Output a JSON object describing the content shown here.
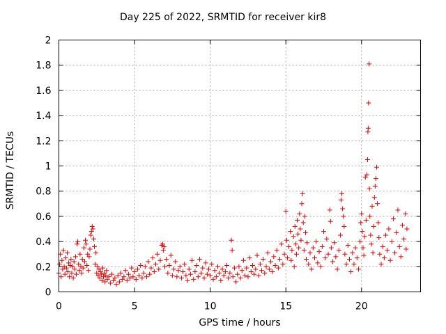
{
  "chart_data": {
    "type": "scatter",
    "title": "Day 225 of 2022, SRMTID for receiver kir8",
    "xlabel": "GPS time / hours",
    "ylabel": "SRMTID / TECUs",
    "xlim": [
      0,
      23.9
    ],
    "ylim": [
      0,
      2
    ],
    "xticks": [
      "0",
      "5",
      "10",
      "15",
      "20"
    ],
    "xtick_values": [
      0,
      5,
      10,
      15,
      20
    ],
    "yticks": [
      "0",
      "0.2",
      "0.4",
      "0.6",
      "0.8",
      "1",
      "1.2",
      "1.4",
      "1.6",
      "1.8",
      "2"
    ],
    "ytick_values": [
      0,
      0.2,
      0.4,
      0.6,
      0.8,
      1.0,
      1.2,
      1.4,
      1.6,
      1.8,
      2.0
    ],
    "grid": true,
    "marker": "+",
    "color": "#dd0000",
    "series": [
      {
        "name": "SRMTID",
        "points": [
          [
            0.0,
            0.15
          ],
          [
            0.05,
            0.22
          ],
          [
            0.1,
            0.3
          ],
          [
            0.15,
            0.12
          ],
          [
            0.2,
            0.25
          ],
          [
            0.25,
            0.18
          ],
          [
            0.3,
            0.33
          ],
          [
            0.35,
            0.2
          ],
          [
            0.4,
            0.14
          ],
          [
            0.45,
            0.27
          ],
          [
            0.5,
            0.19
          ],
          [
            0.55,
            0.31
          ],
          [
            0.6,
            0.16
          ],
          [
            0.65,
            0.23
          ],
          [
            0.7,
            0.12
          ],
          [
            0.75,
            0.21
          ],
          [
            0.8,
            0.26
          ],
          [
            0.85,
            0.15
          ],
          [
            0.9,
            0.2
          ],
          [
            0.95,
            0.11
          ],
          [
            1.0,
            0.24
          ],
          [
            1.05,
            0.18
          ],
          [
            1.1,
            0.28
          ],
          [
            1.15,
            0.14
          ],
          [
            1.2,
            0.38
          ],
          [
            1.25,
            0.4
          ],
          [
            1.3,
            0.22
          ],
          [
            1.35,
            0.17
          ],
          [
            1.4,
            0.3
          ],
          [
            1.45,
            0.2
          ],
          [
            1.5,
            0.15
          ],
          [
            1.55,
            0.26
          ],
          [
            1.6,
            0.19
          ],
          [
            1.65,
            0.35
          ],
          [
            1.7,
            0.24
          ],
          [
            1.75,
            0.41
          ],
          [
            1.8,
            0.38
          ],
          [
            1.85,
            0.21
          ],
          [
            1.9,
            0.3
          ],
          [
            1.95,
            0.17
          ],
          [
            2.0,
            0.28
          ],
          [
            2.05,
            0.34
          ],
          [
            2.1,
            0.45
          ],
          [
            2.15,
            0.48
          ],
          [
            2.2,
            0.52
          ],
          [
            2.25,
            0.5
          ],
          [
            2.3,
            0.42
          ],
          [
            2.35,
            0.36
          ],
          [
            2.4,
            0.22
          ],
          [
            2.45,
            0.31
          ],
          [
            2.5,
            0.15
          ],
          [
            2.55,
            0.2
          ],
          [
            2.6,
            0.13
          ],
          [
            2.65,
            0.18
          ],
          [
            2.7,
            0.11
          ],
          [
            2.75,
            0.16
          ],
          [
            2.8,
            0.14
          ],
          [
            2.85,
            0.09
          ],
          [
            2.9,
            0.19
          ],
          [
            2.95,
            0.12
          ],
          [
            3.0,
            0.15
          ],
          [
            3.05,
            0.08
          ],
          [
            3.1,
            0.13
          ],
          [
            3.15,
            0.17
          ],
          [
            3.2,
            0.1
          ],
          [
            3.3,
            0.12
          ],
          [
            3.4,
            0.07
          ],
          [
            3.5,
            0.14
          ],
          [
            3.6,
            0.09
          ],
          [
            3.7,
            0.11
          ],
          [
            3.8,
            0.06
          ],
          [
            3.9,
            0.13
          ],
          [
            4.0,
            0.08
          ],
          [
            4.1,
            0.15
          ],
          [
            4.2,
            0.1
          ],
          [
            4.3,
            0.12
          ],
          [
            4.4,
            0.17
          ],
          [
            4.5,
            0.09
          ],
          [
            4.6,
            0.14
          ],
          [
            4.7,
            0.11
          ],
          [
            4.8,
            0.19
          ],
          [
            4.9,
            0.12
          ],
          [
            5.0,
            0.16
          ],
          [
            5.1,
            0.1
          ],
          [
            5.2,
            0.18
          ],
          [
            5.3,
            0.13
          ],
          [
            5.4,
            0.21
          ],
          [
            5.5,
            0.11
          ],
          [
            5.6,
            0.15
          ],
          [
            5.7,
            0.2
          ],
          [
            5.8,
            0.12
          ],
          [
            5.9,
            0.24
          ],
          [
            6.0,
            0.14
          ],
          [
            6.1,
            0.19
          ],
          [
            6.2,
            0.27
          ],
          [
            6.3,
            0.16
          ],
          [
            6.4,
            0.22
          ],
          [
            6.5,
            0.3
          ],
          [
            6.6,
            0.18
          ],
          [
            6.7,
            0.25
          ],
          [
            6.8,
            0.37
          ],
          [
            6.85,
            0.38
          ],
          [
            6.9,
            0.33
          ],
          [
            6.95,
            0.36
          ],
          [
            7.0,
            0.2
          ],
          [
            7.1,
            0.26
          ],
          [
            7.2,
            0.15
          ],
          [
            7.3,
            0.21
          ],
          [
            7.4,
            0.29
          ],
          [
            7.5,
            0.13
          ],
          [
            7.6,
            0.18
          ],
          [
            7.7,
            0.24
          ],
          [
            7.8,
            0.12
          ],
          [
            7.9,
            0.17
          ],
          [
            8.0,
            0.2
          ],
          [
            8.1,
            0.11
          ],
          [
            8.2,
            0.16
          ],
          [
            8.3,
            0.22
          ],
          [
            8.4,
            0.13
          ],
          [
            8.5,
            0.09
          ],
          [
            8.6,
            0.18
          ],
          [
            8.7,
            0.14
          ],
          [
            8.8,
            0.25
          ],
          [
            8.9,
            0.1
          ],
          [
            9.0,
            0.16
          ],
          [
            9.1,
            0.21
          ],
          [
            9.2,
            0.12
          ],
          [
            9.3,
            0.26
          ],
          [
            9.4,
            0.15
          ],
          [
            9.5,
            0.19
          ],
          [
            9.6,
            0.11
          ],
          [
            9.7,
            0.23
          ],
          [
            9.8,
            0.14
          ],
          [
            9.9,
            0.18
          ],
          [
            10.0,
            0.13
          ],
          [
            10.1,
            0.22
          ],
          [
            10.2,
            0.1
          ],
          [
            10.3,
            0.17
          ],
          [
            10.4,
            0.12
          ],
          [
            10.5,
            0.2
          ],
          [
            10.6,
            0.15
          ],
          [
            10.7,
            0.09
          ],
          [
            10.8,
            0.18
          ],
          [
            10.9,
            0.13
          ],
          [
            11.0,
            0.16
          ],
          [
            11.1,
            0.21
          ],
          [
            11.2,
            0.11
          ],
          [
            11.3,
            0.15
          ],
          [
            11.4,
            0.41
          ],
          [
            11.45,
            0.33
          ],
          [
            11.5,
            0.12
          ],
          [
            11.6,
            0.19
          ],
          [
            11.7,
            0.08
          ],
          [
            11.8,
            0.14
          ],
          [
            11.9,
            0.2
          ],
          [
            12.0,
            0.11
          ],
          [
            12.1,
            0.17
          ],
          [
            12.2,
            0.25
          ],
          [
            12.3,
            0.13
          ],
          [
            12.4,
            0.19
          ],
          [
            12.5,
            0.12
          ],
          [
            12.6,
            0.27
          ],
          [
            12.7,
            0.16
          ],
          [
            12.8,
            0.21
          ],
          [
            12.9,
            0.14
          ],
          [
            13.0,
            0.18
          ],
          [
            13.1,
            0.29
          ],
          [
            13.2,
            0.13
          ],
          [
            13.3,
            0.22
          ],
          [
            13.4,
            0.17
          ],
          [
            13.5,
            0.26
          ],
          [
            13.6,
            0.15
          ],
          [
            13.7,
            0.2
          ],
          [
            13.8,
            0.31
          ],
          [
            13.9,
            0.18
          ],
          [
            14.0,
            0.24
          ],
          [
            14.1,
            0.16
          ],
          [
            14.2,
            0.28
          ],
          [
            14.3,
            0.21
          ],
          [
            14.4,
            0.33
          ],
          [
            14.5,
            0.19
          ],
          [
            14.6,
            0.26
          ],
          [
            14.7,
            0.38
          ],
          [
            14.8,
            0.22
          ],
          [
            14.9,
            0.3
          ],
          [
            15.0,
            0.64
          ],
          [
            15.05,
            0.41
          ],
          [
            15.1,
            0.27
          ],
          [
            15.2,
            0.36
          ],
          [
            15.3,
            0.48
          ],
          [
            15.35,
            0.25
          ],
          [
            15.4,
            0.33
          ],
          [
            15.5,
            0.44
          ],
          [
            15.55,
            0.2
          ],
          [
            15.6,
            0.52
          ],
          [
            15.65,
            0.38
          ],
          [
            15.7,
            0.3
          ],
          [
            15.75,
            0.57
          ],
          [
            15.8,
            0.46
          ],
          [
            15.85,
            0.35
          ],
          [
            15.9,
            0.62
          ],
          [
            15.95,
            0.5
          ],
          [
            16.0,
            0.41
          ],
          [
            16.05,
            0.7
          ],
          [
            16.1,
            0.78
          ],
          [
            16.15,
            0.55
          ],
          [
            16.2,
            0.33
          ],
          [
            16.25,
            0.6
          ],
          [
            16.3,
            0.47
          ],
          [
            16.35,
            0.26
          ],
          [
            16.4,
            0.39
          ],
          [
            16.5,
            0.22
          ],
          [
            16.6,
            0.31
          ],
          [
            16.7,
            0.18
          ],
          [
            16.8,
            0.35
          ],
          [
            16.9,
            0.27
          ],
          [
            17.0,
            0.4
          ],
          [
            17.1,
            0.23
          ],
          [
            17.2,
            0.32
          ],
          [
            17.3,
            0.2
          ],
          [
            17.4,
            0.36
          ],
          [
            17.5,
            0.48
          ],
          [
            17.6,
            0.27
          ],
          [
            17.7,
            0.42
          ],
          [
            17.8,
            0.3
          ],
          [
            17.9,
            0.65
          ],
          [
            17.95,
            0.56
          ],
          [
            18.0,
            0.35
          ],
          [
            18.1,
            0.24
          ],
          [
            18.2,
            0.39
          ],
          [
            18.3,
            0.28
          ],
          [
            18.4,
            0.18
          ],
          [
            18.5,
            0.33
          ],
          [
            18.6,
            0.45
          ],
          [
            18.65,
            0.73
          ],
          [
            18.7,
            0.78
          ],
          [
            18.75,
            0.66
          ],
          [
            18.8,
            0.6
          ],
          [
            18.85,
            0.52
          ],
          [
            18.9,
            0.3
          ],
          [
            19.0,
            0.22
          ],
          [
            19.1,
            0.37
          ],
          [
            19.2,
            0.26
          ],
          [
            19.3,
            0.16
          ],
          [
            19.4,
            0.31
          ],
          [
            19.5,
            0.22
          ],
          [
            19.6,
            0.35
          ],
          [
            19.7,
            0.27
          ],
          [
            19.8,
            0.18
          ],
          [
            19.9,
            0.4
          ],
          [
            19.95,
            0.55
          ],
          [
            20.0,
            0.62
          ],
          [
            20.05,
            0.48
          ],
          [
            20.1,
            0.35
          ],
          [
            20.15,
            0.29
          ],
          [
            20.2,
            0.44
          ],
          [
            20.25,
            0.91
          ],
          [
            20.3,
            0.57
          ],
          [
            20.35,
            0.93
          ],
          [
            20.4,
            1.05
          ],
          [
            20.42,
            1.27
          ],
          [
            20.44,
            1.3
          ],
          [
            20.46,
            1.5
          ],
          [
            20.5,
            1.81
          ],
          [
            20.52,
            0.82
          ],
          [
            20.55,
            0.6
          ],
          [
            20.6,
            0.45
          ],
          [
            20.65,
            0.38
          ],
          [
            20.7,
            0.68
          ],
          [
            20.75,
            0.31
          ],
          [
            20.8,
            0.52
          ],
          [
            20.85,
            0.75
          ],
          [
            20.9,
            0.84
          ],
          [
            20.95,
            0.9
          ],
          [
            21.0,
            0.99
          ],
          [
            21.05,
            0.7
          ],
          [
            21.1,
            0.55
          ],
          [
            21.15,
            0.43
          ],
          [
            21.2,
            0.3
          ],
          [
            21.3,
            0.22
          ],
          [
            21.4,
            0.36
          ],
          [
            21.5,
            0.27
          ],
          [
            21.6,
            0.45
          ],
          [
            21.7,
            0.33
          ],
          [
            21.8,
            0.5
          ],
          [
            21.9,
            0.25
          ],
          [
            22.0,
            0.4
          ],
          [
            22.1,
            0.58
          ],
          [
            22.2,
            0.31
          ],
          [
            22.3,
            0.47
          ],
          [
            22.4,
            0.65
          ],
          [
            22.5,
            0.36
          ],
          [
            22.6,
            0.28
          ],
          [
            22.7,
            0.53
          ],
          [
            22.8,
            0.42
          ],
          [
            22.9,
            0.62
          ],
          [
            22.95,
            0.34
          ],
          [
            23.0,
            0.5
          ]
        ]
      }
    ]
  }
}
